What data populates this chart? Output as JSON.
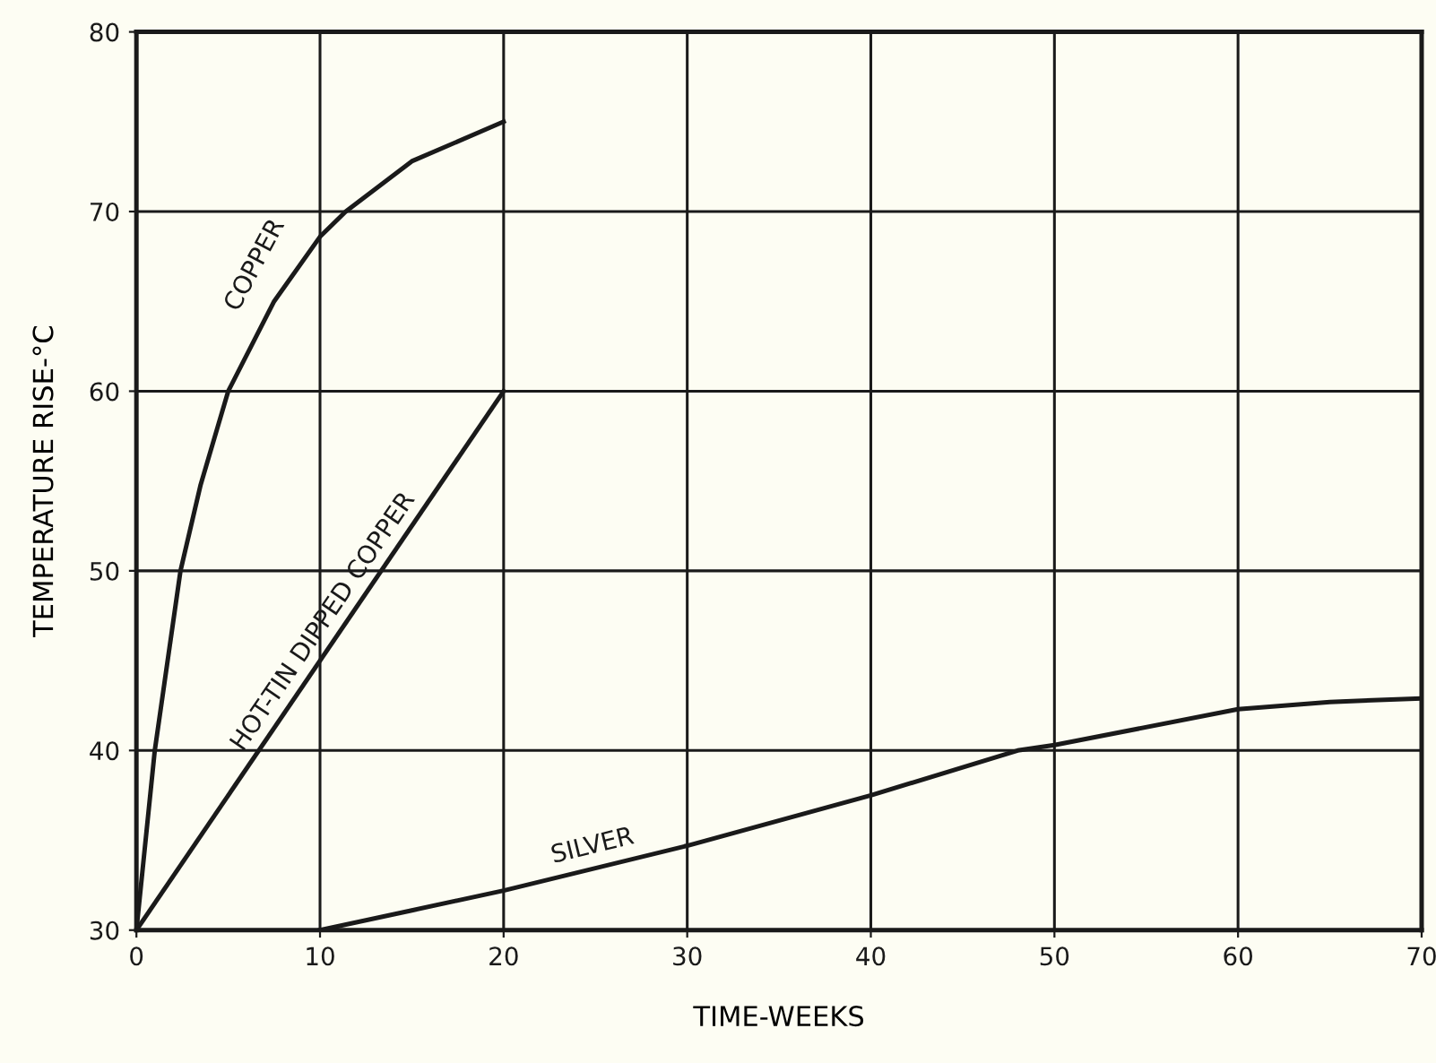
{
  "chart_data": {
    "type": "line",
    "xlabel": "TIME-WEEKS",
    "ylabel": "TEMPERATURE RISE-°C",
    "xlim": [
      0,
      70
    ],
    "ylim": [
      30,
      80
    ],
    "xticks": [
      0,
      10,
      20,
      30,
      40,
      50,
      60,
      70
    ],
    "yticks": [
      30,
      40,
      50,
      60,
      70,
      80
    ],
    "grid": true,
    "marker": "none",
    "line_style": "solid",
    "series": [
      {
        "name": "COPPER",
        "color": "#1a1a1a",
        "x": [
          0,
          1.0,
          2.4,
          3.5,
          5.0,
          7.5,
          10,
          11.4,
          15,
          20
        ],
        "values": [
          30,
          40,
          50,
          54.8,
          60,
          65,
          68.6,
          70,
          72.8,
          75
        ]
      },
      {
        "name": "HOT-TIN DIPPED COPPER",
        "color": "#1a1a1a",
        "x": [
          0,
          20
        ],
        "values": [
          30,
          60
        ]
      },
      {
        "name": "SILVER",
        "color": "#1a1a1a",
        "x": [
          10,
          15,
          20,
          30,
          40,
          48,
          50,
          60,
          65,
          70
        ],
        "values": [
          30,
          31.1,
          32.2,
          34.7,
          37.5,
          40,
          40.3,
          42.3,
          42.7,
          42.9
        ]
      }
    ]
  }
}
